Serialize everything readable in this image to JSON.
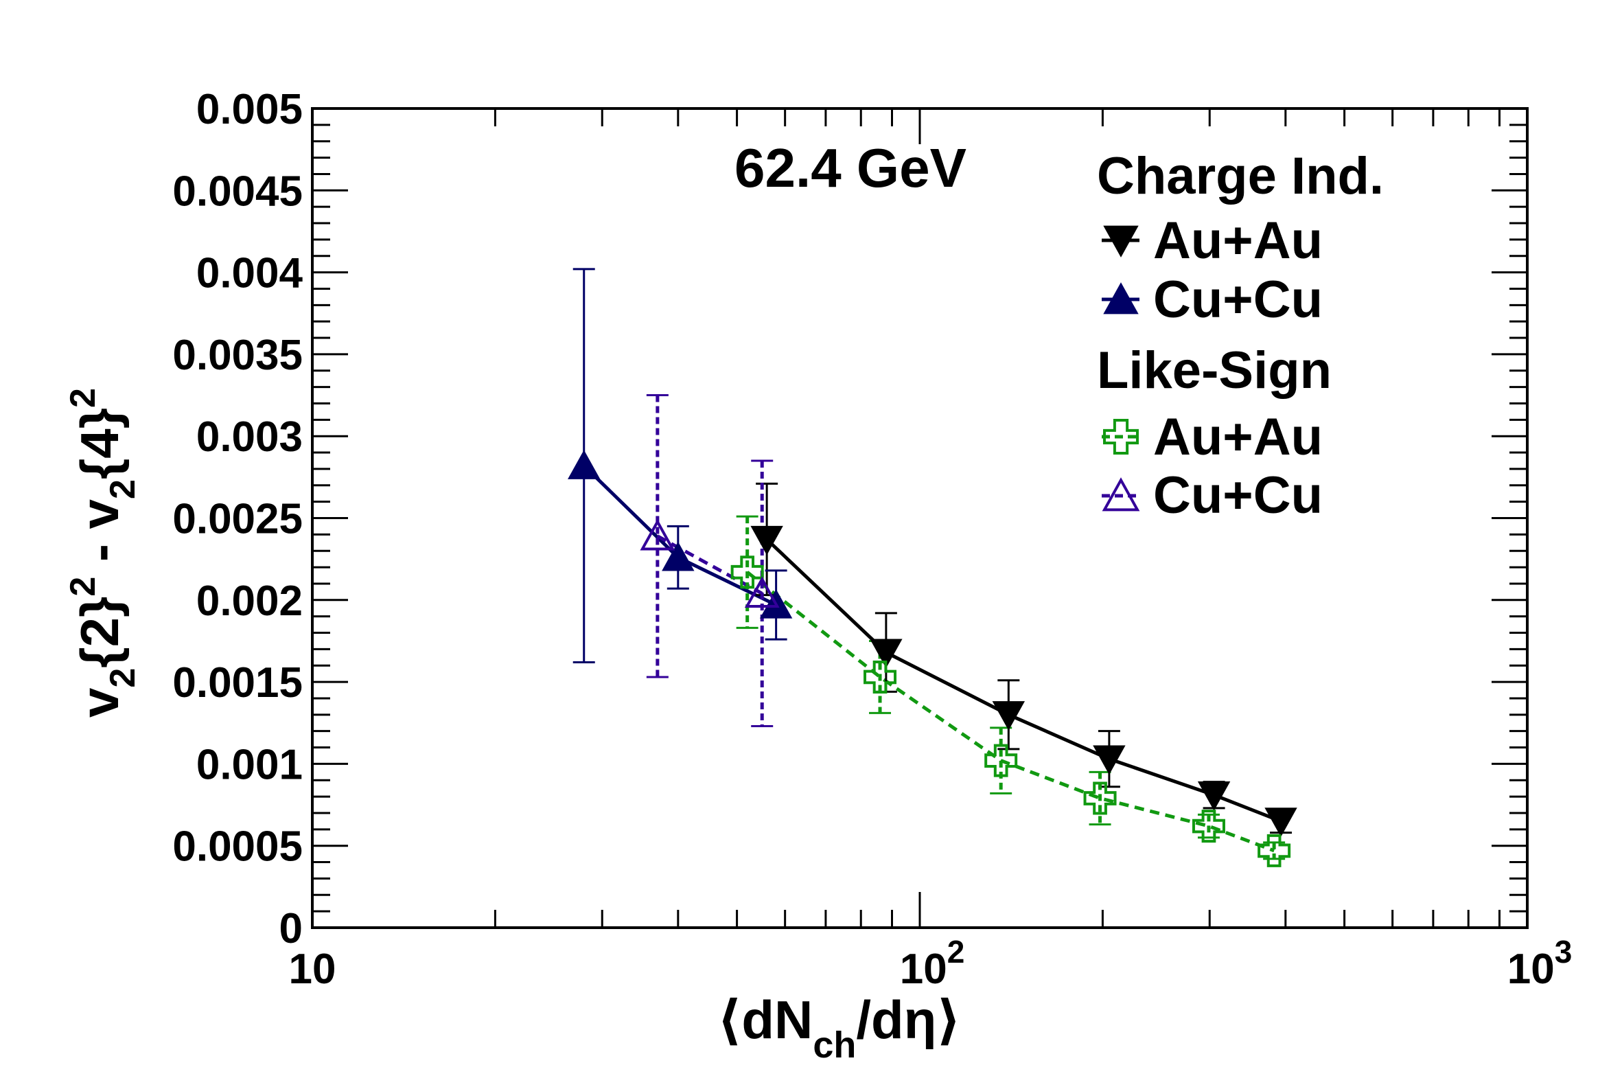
{
  "chart_data": {
    "type": "scatter",
    "annotation": "62.4 GeV",
    "xlabel": {
      "pre": "⟨dN",
      "sub": "ch",
      "post": "/dη⟩"
    },
    "ylabel": {
      "a": "v",
      "a_sub": "2",
      "a_mid": "{2}",
      "a_sup": "2",
      "b": " - v",
      "b_sub": "2",
      "b_mid": "{4}",
      "b_sup": "2"
    },
    "xscale": "log",
    "xlim": [
      10,
      1000
    ],
    "ylim": [
      0,
      0.005
    ],
    "xticks": [
      {
        "base": "10",
        "exp": ""
      },
      {
        "base": "10",
        "exp": "2"
      },
      {
        "base": "10",
        "exp": "3"
      }
    ],
    "yticks": [
      "0",
      "0.0005",
      "0.001",
      "0.0015",
      "0.002",
      "0.0025",
      "0.003",
      "0.0035",
      "0.004",
      "0.0045",
      "0.005"
    ],
    "legend": {
      "placement": "top-right",
      "group1": "Charge Ind.",
      "group2": "Like-Sign",
      "entries": [
        "Au+Au",
        "Cu+Cu",
        "Au+Au",
        "Cu+Cu"
      ]
    },
    "series": [
      {
        "group": "Charge Ind.",
        "system": "Au+Au",
        "marker": "triangle-down",
        "filled": true,
        "line": "solid",
        "color": "#000000",
        "points": [
          {
            "x": 56,
            "y": 0.00237,
            "err": 0.00034
          },
          {
            "x": 88,
            "y": 0.00168,
            "err": 0.00024
          },
          {
            "x": 140,
            "y": 0.0013,
            "err": 0.00021
          },
          {
            "x": 205,
            "y": 0.00103,
            "err": 0.00017
          },
          {
            "x": 305,
            "y": 0.00081,
            "err": 8e-05
          },
          {
            "x": 393,
            "y": 0.00065,
            "err": 7e-05
          }
        ]
      },
      {
        "group": "Charge Ind.",
        "system": "Cu+Cu",
        "marker": "triangle-up",
        "filled": true,
        "line": "solid",
        "color": "#000066",
        "points": [
          {
            "x": 28,
            "y": 0.00282,
            "err": 0.0012
          },
          {
            "x": 40,
            "y": 0.00226,
            "err": 0.00019
          },
          {
            "x": 58,
            "y": 0.00197,
            "err": 0.00021
          }
        ]
      },
      {
        "group": "Like-Sign",
        "system": "Au+Au",
        "marker": "cross-open",
        "filled": false,
        "line": "dashed",
        "color": "#119911",
        "points": [
          {
            "x": 52,
            "y": 0.00217,
            "err": 0.00034
          },
          {
            "x": 86,
            "y": 0.00153,
            "err": 0.00022
          },
          {
            "x": 136,
            "y": 0.00102,
            "err": 0.0002
          },
          {
            "x": 198,
            "y": 0.00079,
            "err": 0.00016
          },
          {
            "x": 299,
            "y": 0.00062,
            "err": 7e-05
          },
          {
            "x": 383,
            "y": 0.00047,
            "err": 5e-05
          }
        ]
      },
      {
        "group": "Like-Sign",
        "system": "Cu+Cu",
        "marker": "triangle-up-open",
        "filled": false,
        "line": "dashed",
        "color": "#330099",
        "points": [
          {
            "x": 37,
            "y": 0.00239,
            "err": 0.00086
          },
          {
            "x": 55,
            "y": 0.00204,
            "err": 0.00081
          }
        ]
      }
    ]
  }
}
